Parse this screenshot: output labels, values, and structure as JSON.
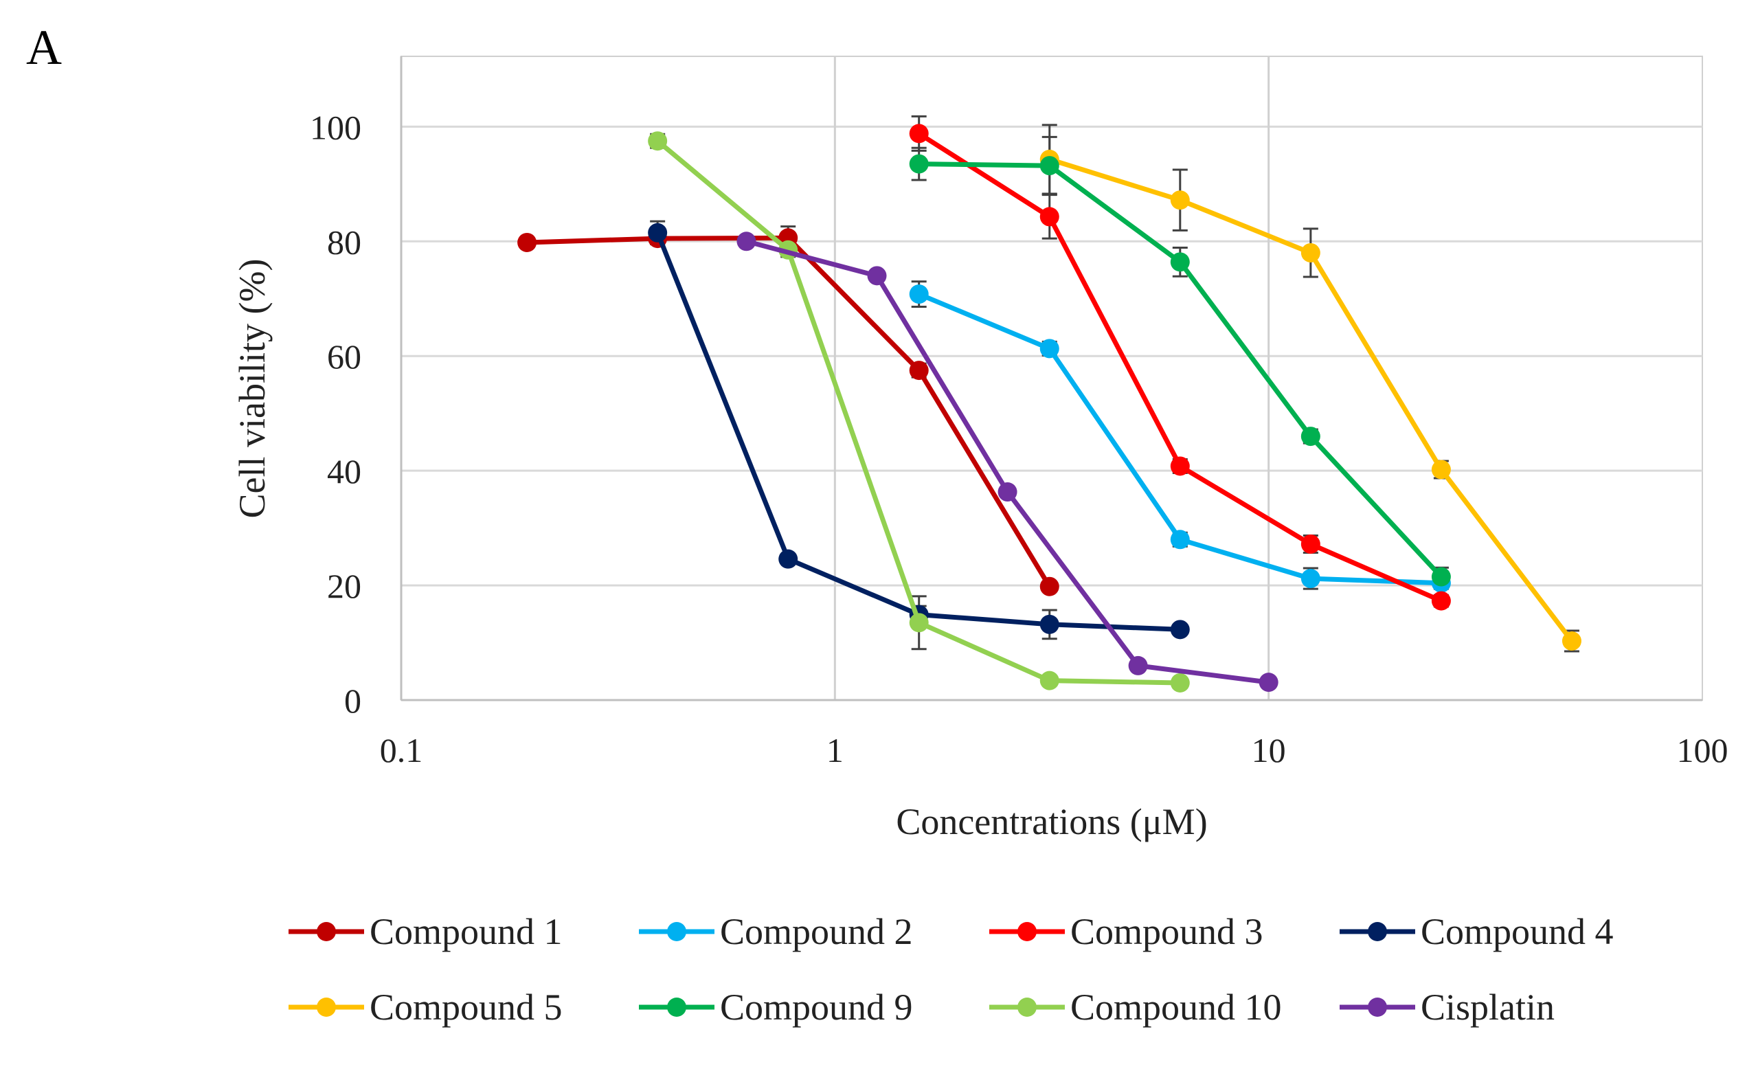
{
  "panel_label": "A",
  "chart_data": {
    "type": "line",
    "title": "",
    "xlabel": "Concentrations (μM)",
    "ylabel": "Cell viability (%)",
    "x_scale": "log",
    "xlim": [
      0.1,
      100
    ],
    "ylim": [
      0,
      110
    ],
    "x_ticks": [
      0.1,
      1,
      10,
      100
    ],
    "x_tick_labels": [
      "0.1",
      "1",
      "10",
      "100"
    ],
    "y_ticks": [
      0,
      20,
      40,
      60,
      80,
      100
    ],
    "y_tick_labels": [
      "0",
      "20",
      "40",
      "60",
      "80",
      "100"
    ],
    "grid": true,
    "legend_position": "bottom",
    "series": [
      {
        "name": "Compound 1",
        "color": "#C00000",
        "x": [
          0.195,
          0.39,
          0.78,
          1.5625,
          3.125
        ],
        "y": [
          79.8,
          80.5,
          80.6,
          57.5,
          19.8
        ],
        "err": [
          0.8,
          0.8,
          2.0,
          1.2,
          0.6
        ]
      },
      {
        "name": "Compound 2",
        "color": "#00B0F0",
        "x": [
          1.5625,
          3.125,
          6.25,
          12.5,
          25
        ],
        "y": [
          70.8,
          61.3,
          28.0,
          21.2,
          20.4
        ],
        "err": [
          2.2,
          1.2,
          1.2,
          1.8,
          1.0
        ]
      },
      {
        "name": "Compound 3",
        "color": "#FF0000",
        "x": [
          1.5625,
          3.125,
          6.25,
          12.5,
          25
        ],
        "y": [
          98.8,
          84.3,
          40.8,
          27.2,
          17.3
        ],
        "err": [
          3.0,
          3.8,
          1.2,
          1.5,
          1.0
        ]
      },
      {
        "name": "Compound 4",
        "color": "#002060",
        "x": [
          0.39,
          0.78,
          1.5625,
          3.125,
          6.25
        ],
        "y": [
          81.5,
          24.6,
          14.9,
          13.2,
          12.3
        ],
        "err": [
          2.0,
          0.8,
          1.5,
          2.5,
          0.8
        ]
      },
      {
        "name": "Compound 5",
        "color": "#FFC000",
        "x": [
          3.125,
          6.25,
          12.5,
          25,
          50
        ],
        "y": [
          94.3,
          87.2,
          78.0,
          40.2,
          10.3
        ],
        "err": [
          6.0,
          5.3,
          4.2,
          1.5,
          1.8
        ]
      },
      {
        "name": "Compound 9",
        "color": "#00B050",
        "x": [
          1.5625,
          3.125,
          6.25,
          12.5,
          25
        ],
        "y": [
          93.5,
          93.2,
          76.4,
          46.0,
          21.5
        ],
        "err": [
          2.8,
          5.0,
          2.5,
          1.2,
          1.6
        ]
      },
      {
        "name": "Compound 10",
        "color": "#92D050",
        "x": [
          0.39,
          0.78,
          1.5625,
          3.125,
          6.25
        ],
        "y": [
          97.5,
          78.5,
          13.5,
          3.4,
          3.0
        ],
        "err": [
          1.2,
          1.2,
          4.6,
          0.6,
          0.4
        ]
      },
      {
        "name": "Cisplatin",
        "color": "#7030A0",
        "x": [
          0.625,
          1.25,
          2.5,
          5,
          10
        ],
        "y": [
          80.0,
          74.0,
          36.3,
          6.0,
          3.1
        ],
        "err": [
          0.5,
          0.6,
          0.6,
          0.5,
          0.4
        ]
      }
    ]
  }
}
